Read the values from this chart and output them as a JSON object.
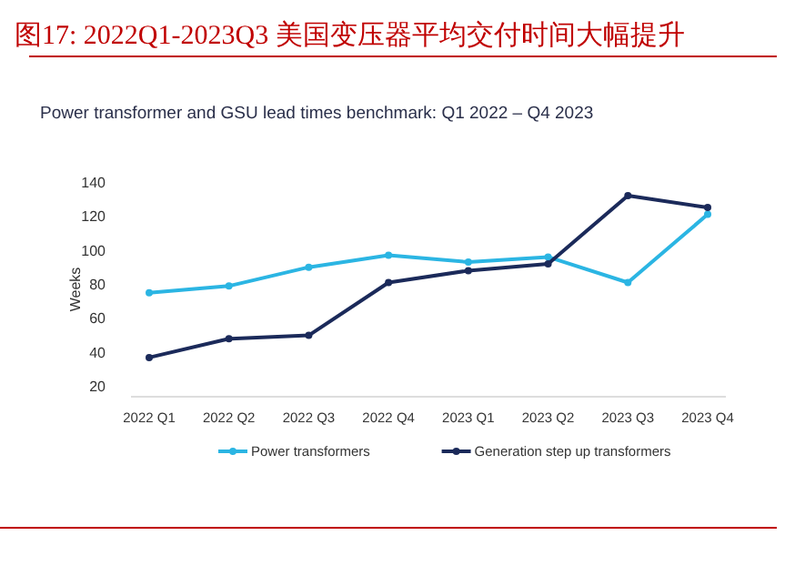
{
  "chart_data": {
    "type": "line",
    "title": "图17:   2022Q1-2023Q3 美国变压器平均交付时间大幅提升",
    "subtitle": "Power transformer and GSU lead times benchmark: Q1 2022 – Q4 2023",
    "ylabel": "Weeks",
    "categories": [
      "2022 Q1",
      "2022 Q2",
      "2022 Q3",
      "2022 Q4",
      "2023 Q1",
      "2023 Q2",
      "2023 Q3",
      "2023 Q4"
    ],
    "series": [
      {
        "name": "Power transformers",
        "color": "#2bb5e3",
        "values": [
          75,
          79,
          90,
          97,
          93,
          96,
          81,
          121
        ]
      },
      {
        "name": "Generation step up transformers",
        "color": "#1b2a5a",
        "values": [
          37,
          48,
          50,
          81,
          88,
          92,
          132,
          125
        ]
      }
    ],
    "ylim": [
      14,
      140
    ],
    "yticks": [
      20,
      40,
      60,
      80,
      100,
      120,
      140
    ],
    "grid": false,
    "legend": "bottom",
    "marker": "circle",
    "line_style": "solid"
  }
}
